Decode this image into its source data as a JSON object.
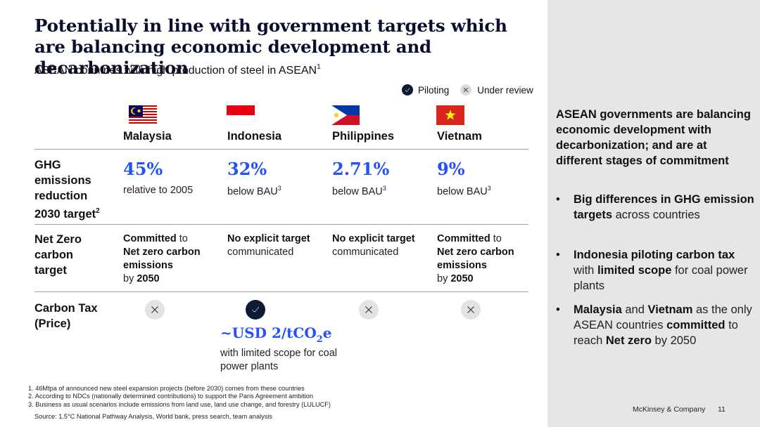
{
  "header": {
    "title": "Potentially in line with government targets which are balancing economic development and decarbonization",
    "subtitle": "ASEAN countries with high production of steel in ASEAN",
    "subtitle_footnote": "1"
  },
  "legend": {
    "piloting": "Piloting",
    "under_review": "Under review"
  },
  "countries": [
    "Malaysia",
    "Indonesia",
    "Philippines",
    "Vietnam"
  ],
  "rows": {
    "ghg_label": "GHG emissions reduction 2030 target",
    "ghg_label_footnote": "2",
    "netzero_label": "Net Zero carbon target",
    "carbontax_label": "Carbon Tax (Price)"
  },
  "ghg": [
    {
      "value": "45%",
      "note": "relative to 2005",
      "sup": ""
    },
    {
      "value": "32%",
      "note": "below BAU",
      "sup": "3"
    },
    {
      "value": "2.71%",
      "note": "below BAU",
      "sup": "3"
    },
    {
      "value": "9%",
      "note": "below BAU",
      "sup": "3"
    }
  ],
  "netzero": {
    "committed_word": "Committed",
    "to_word": " to",
    "target_text": "Net zero carbon emissions",
    "by_word": "by ",
    "year": "2050",
    "no_target_bold": "No explicit target",
    "no_target_rest": "communicated"
  },
  "carbon_tax": {
    "status": [
      "under-review",
      "piloting",
      "under-review",
      "under-review"
    ],
    "indonesia_price_prefix": "~USD 2/tCO",
    "indonesia_price_sub": "2",
    "indonesia_price_suffix": "e",
    "indonesia_note": "with limited scope for coal power plants"
  },
  "footnotes": [
    "1. 46Mtpa of announced new steel expansion projects (before 2030) comes from these countries",
    "2. According to NDCs (nationally determined contributions) to support the Paris Agreement ambition",
    "3. Business as usual scenarios include emissions from land use, land use change, and forestry (LULUCF)"
  ],
  "source": "Source: 1.5°C National Pathway Analysis, World bank, press search, team analysis",
  "sidebar": {
    "heading": "ASEAN governments are balancing economic development with decarbonization; and are at different stages of commitment",
    "bullet_char": "•",
    "b1_bold": "Big differences in GHG emission targets",
    "b1_rest": " across countries",
    "b2_bold1": "Indonesia piloting carbon tax",
    "b2_mid": " with ",
    "b2_bold2": "limited scope",
    "b2_rest": " for coal power plants",
    "b3_bold1": "Malaysia",
    "b3_mid1": " and ",
    "b3_bold2": "Vietnam",
    "b3_mid2": " as the only ASEAN countries ",
    "b3_bold3": "committed",
    "b3_mid3": " to reach ",
    "b3_bold4": "Net zero",
    "b3_rest": " by 2050"
  },
  "footer": {
    "brand": "McKinsey & Company",
    "page": "11"
  },
  "colors": {
    "accent": "#2251ff",
    "navy": "#0c1a33",
    "panel": "#e6e6e6"
  }
}
